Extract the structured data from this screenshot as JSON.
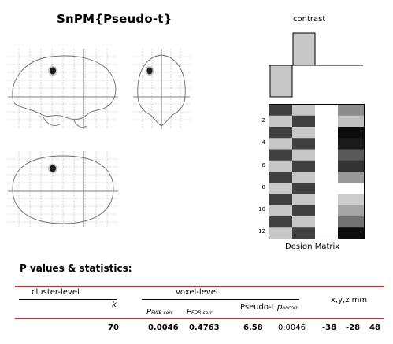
{
  "title": "SnPM{Pseudo-t}",
  "contrast": {
    "label": "contrast",
    "values": [
      -1,
      1,
      0,
      0
    ]
  },
  "design_matrix": {
    "label": "Design Matrix",
    "row_labels": [
      "2",
      "4",
      "6",
      "8",
      "10",
      "12"
    ]
  },
  "stats": {
    "heading": "P values & statistics:",
    "headers": {
      "cluster_level": "cluster-level",
      "voxel_level": "voxel-level",
      "k": "k",
      "p_fwe": "P",
      "p_fwe_sub": "FWE-corr",
      "p_fdr": "P",
      "p_fdr_sub": "FDR-corr",
      "pseudo_t": "Pseudo-t",
      "p_unc": "p",
      "p_unc_sub": "uncorr",
      "xyz": "x,y,z mm"
    },
    "row": {
      "k": "70",
      "p_fwe": "0.0046",
      "p_fdr": "0.4763",
      "pseudo_t": "6.58",
      "p_unc": "0.0046",
      "x": "-38",
      "y": "-28",
      "z": "48"
    }
  },
  "colors": {
    "accent_red": "#e8202a",
    "grid": "#9a9a9a",
    "outline": "#6a6a6a"
  }
}
